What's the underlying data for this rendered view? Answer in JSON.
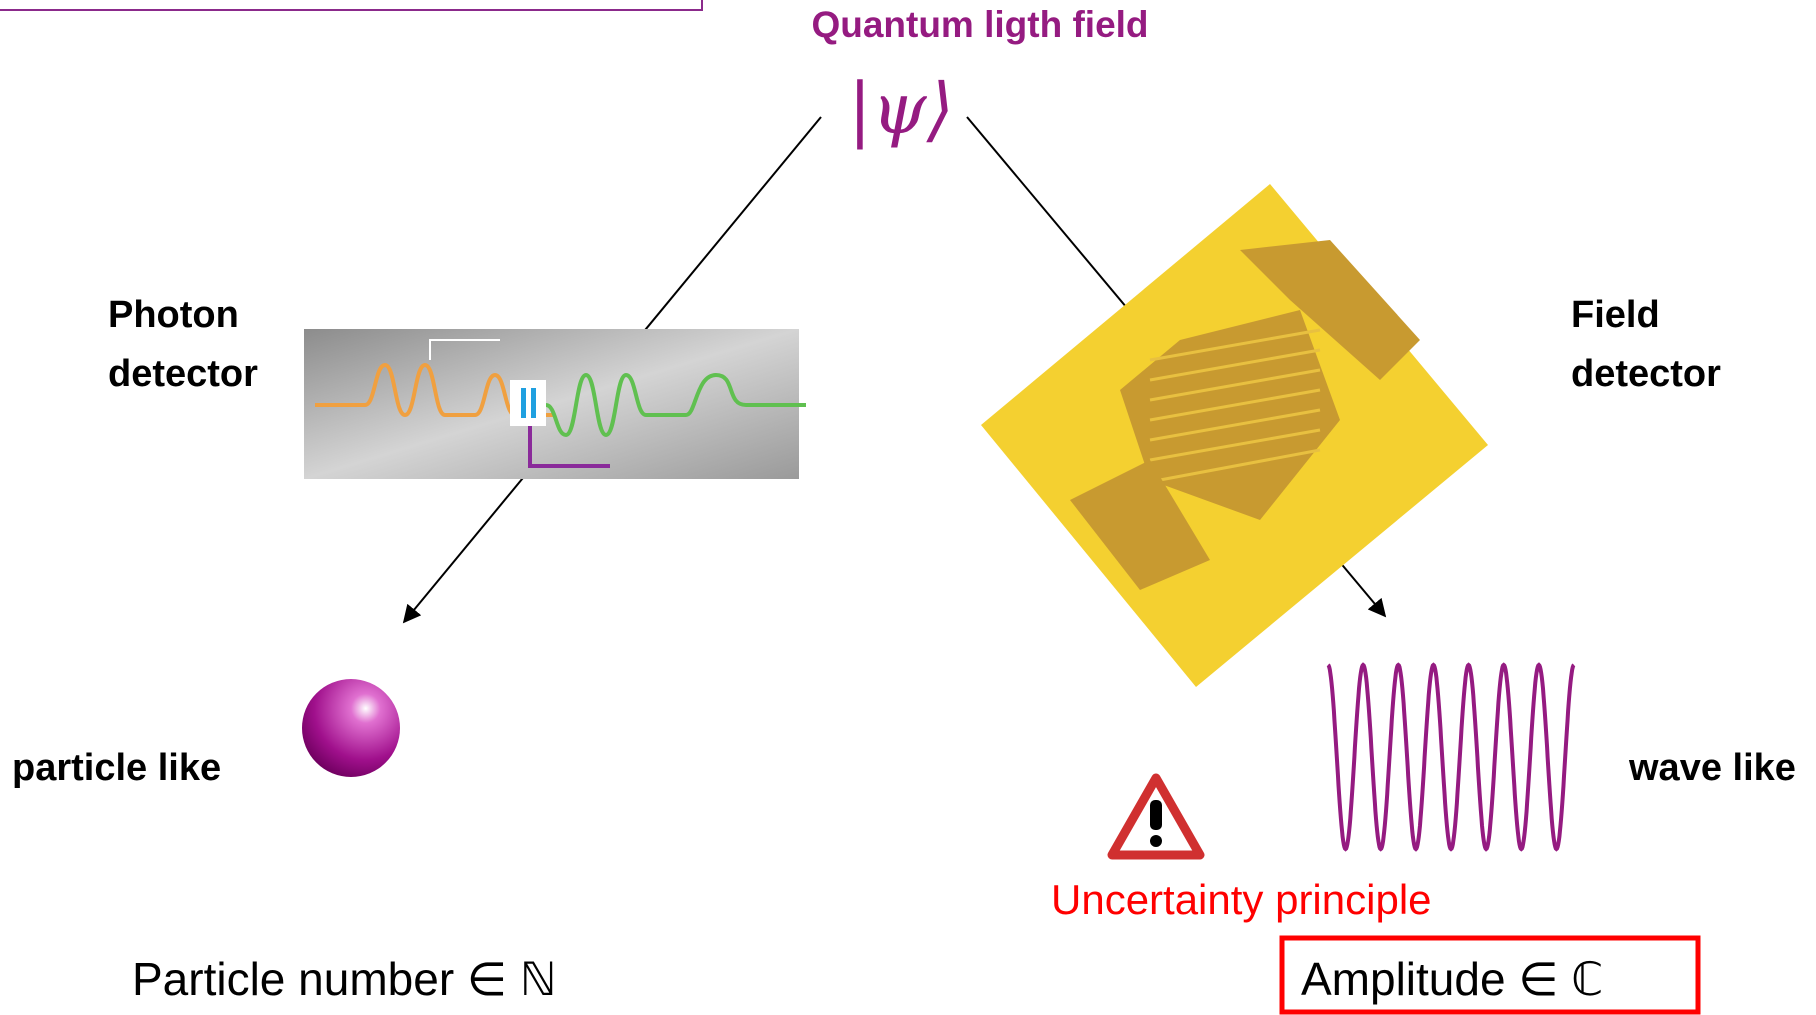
{
  "title": "Quantum ligth field",
  "state": "|ψ⟩",
  "left": {
    "label": [
      "Photon",
      "detector"
    ],
    "outcome": "particle like",
    "quantity": "Particle number ∈ ℕ"
  },
  "right": {
    "label": [
      "Field",
      "detector"
    ],
    "outcome": "wave like",
    "quantity": "Amplitude ∈ ℂ"
  },
  "warning": "Uncertainty principle"
}
